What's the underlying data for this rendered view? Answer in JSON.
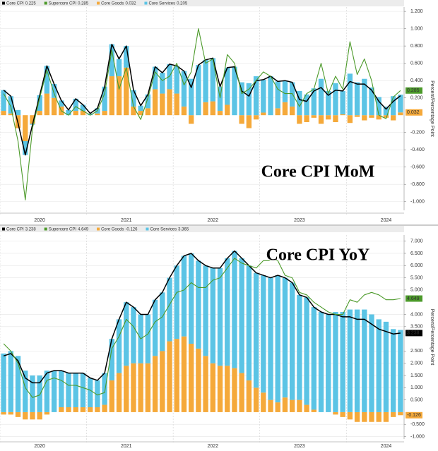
{
  "chart_data": [
    {
      "type": "bar",
      "title": "Core CPI MoM",
      "ylabel": "Percent/Percentage Point",
      "categories": [
        null,
        null,
        null,
        null,
        null,
        "2020",
        null,
        null,
        null,
        null,
        null,
        null,
        null,
        null,
        null,
        null,
        null,
        "2021",
        null,
        null,
        null,
        null,
        null,
        null,
        null,
        null,
        null,
        null,
        null,
        "2022",
        null,
        null,
        null,
        null,
        null,
        null,
        null,
        null,
        null,
        null,
        null,
        "2023",
        null,
        null,
        null,
        null,
        null,
        null,
        null,
        null,
        null,
        null,
        null,
        "2024",
        null,
        null
      ],
      "ylim": [
        -1.1,
        1.25
      ],
      "yticks": [
        {
          "value": 1.2,
          "label": "1.200"
        },
        {
          "value": 1.0,
          "label": "1.000"
        },
        {
          "value": 0.8,
          "label": "0.800"
        },
        {
          "value": 0.6,
          "label": "0.600"
        },
        {
          "value": 0.4,
          "label": "0.400"
        },
        {
          "value": 0.2,
          "label": "0.200"
        },
        {
          "value": -0.2,
          "label": "-0.200"
        },
        {
          "value": -0.4,
          "label": "-0.400"
        },
        {
          "value": -0.6,
          "label": "-0.600"
        },
        {
          "value": -0.8,
          "label": "-0.800"
        },
        {
          "value": -1.0,
          "label": "-1.000"
        }
      ],
      "grid": true,
      "series": [
        {
          "name": "Core CPI",
          "type": "line",
          "color": "#000000",
          "tag": false,
          "values": [
            0.29,
            0.22,
            -0.09,
            -0.46,
            -0.11,
            0.23,
            0.57,
            0.36,
            0.17,
            0.06,
            0.19,
            0.12,
            0.02,
            0.08,
            0.33,
            0.82,
            0.65,
            0.8,
            0.29,
            0.11,
            0.24,
            0.56,
            0.49,
            0.59,
            0.57,
            0.51,
            0.32,
            0.58,
            0.64,
            0.66,
            0.33,
            0.55,
            0.56,
            0.28,
            0.22,
            0.4,
            0.41,
            0.45,
            0.39,
            0.4,
            0.38,
            0.18,
            0.16,
            0.28,
            0.32,
            0.23,
            0.29,
            0.28,
            0.39,
            0.36,
            0.36,
            0.29,
            0.16,
            0.07,
            0.16,
            0.225
          ]
        },
        {
          "name": "Supercore CPI",
          "type": "line",
          "color": "#4c9a2a",
          "tag": true,
          "values": [
            0.25,
            0.1,
            -0.3,
            -0.98,
            -0.15,
            0.2,
            0.52,
            0.25,
            0.05,
            0.0,
            0.1,
            0.05,
            0.0,
            0.05,
            0.25,
            0.75,
            0.3,
            0.55,
            0.1,
            -0.05,
            0.2,
            0.5,
            0.4,
            0.45,
            0.6,
            0.35,
            0.5,
            1.0,
            0.6,
            0.65,
            0.2,
            0.7,
            0.6,
            0.25,
            0.3,
            0.4,
            0.5,
            0.45,
            0.3,
            0.25,
            0.25,
            0.1,
            0.25,
            0.3,
            0.6,
            0.25,
            0.45,
            0.3,
            0.85,
            0.47,
            0.65,
            0.4,
            0.0,
            -0.04,
            0.21,
            0.285
          ]
        },
        {
          "name": "Core Goods",
          "type": "bar",
          "color": "#f5a93a",
          "tag": true,
          "values": [
            0.05,
            0.02,
            -0.15,
            -0.3,
            -0.1,
            0.05,
            0.25,
            0.2,
            0.1,
            0.0,
            0.05,
            0.05,
            0.0,
            0.02,
            0.05,
            0.45,
            0.45,
            0.55,
            0.1,
            0.05,
            0.08,
            0.3,
            0.25,
            0.3,
            0.25,
            0.1,
            -0.1,
            0.0,
            0.15,
            0.16,
            0.05,
            0.12,
            0.0,
            -0.1,
            -0.15,
            -0.05,
            0.03,
            0.0,
            0.08,
            0.15,
            0.1,
            -0.1,
            -0.08,
            -0.03,
            -0.1,
            -0.05,
            -0.08,
            0.01,
            -0.09,
            -0.02,
            -0.06,
            -0.03,
            -0.05,
            -0.03,
            -0.06,
            0.032
          ]
        },
        {
          "name": "Core Services",
          "type": "bar",
          "color": "#5bc4e5",
          "tag": false,
          "values": [
            0.24,
            0.2,
            0.06,
            -0.16,
            -0.01,
            0.18,
            0.32,
            0.16,
            0.07,
            0.06,
            0.14,
            0.07,
            0.02,
            0.06,
            0.28,
            0.37,
            0.2,
            0.25,
            0.19,
            0.06,
            0.16,
            0.26,
            0.24,
            0.29,
            0.32,
            0.41,
            0.42,
            0.58,
            0.49,
            0.5,
            0.28,
            0.43,
            0.56,
            0.38,
            0.37,
            0.45,
            0.38,
            0.45,
            0.31,
            0.25,
            0.28,
            0.28,
            0.24,
            0.31,
            0.42,
            0.28,
            0.37,
            0.27,
            0.48,
            0.38,
            0.42,
            0.32,
            0.21,
            0.1,
            0.22,
            0.205
          ]
        }
      ]
    },
    {
      "type": "bar",
      "title": "Core CPI YoY",
      "ylabel": "Percent/Percentage Point",
      "categories": [
        null,
        null,
        null,
        null,
        null,
        "2020",
        null,
        null,
        null,
        null,
        null,
        null,
        null,
        null,
        null,
        null,
        null,
        "2021",
        null,
        null,
        null,
        null,
        null,
        null,
        null,
        null,
        null,
        null,
        null,
        "2022",
        null,
        null,
        null,
        null,
        null,
        null,
        null,
        null,
        null,
        null,
        null,
        "2023",
        null,
        null,
        null,
        null,
        null,
        null,
        null,
        null,
        null,
        null,
        null,
        "2024",
        null,
        null
      ],
      "ylim": [
        -1.1,
        7.25
      ],
      "yticks": [
        {
          "value": 7.0,
          "label": "7.000"
        },
        {
          "value": 6.5,
          "label": "6.500"
        },
        {
          "value": 6.0,
          "label": "6.000"
        },
        {
          "value": 5.5,
          "label": "5.500"
        },
        {
          "value": 5.0,
          "label": "5.000"
        },
        {
          "value": 4.0,
          "label": "4.000"
        },
        {
          "value": 3.5,
          "label": "3.500"
        },
        {
          "value": 2.5,
          "label": "2.500"
        },
        {
          "value": 2.0,
          "label": "2.000"
        },
        {
          "value": 1.5,
          "label": "1.500"
        },
        {
          "value": 1.0,
          "label": "1.000"
        },
        {
          "value": 0.5,
          "label": "0.500"
        },
        {
          "value": -0.5,
          "label": "-0.500"
        },
        {
          "value": -1.0,
          "label": "-1.000"
        }
      ],
      "grid": true,
      "series": [
        {
          "name": "Core CPI",
          "type": "line",
          "color": "#000000",
          "tag": true,
          "values": [
            2.3,
            2.4,
            2.1,
            1.4,
            1.2,
            1.2,
            1.6,
            1.7,
            1.7,
            1.6,
            1.6,
            1.6,
            1.4,
            1.3,
            1.6,
            3.0,
            3.8,
            4.5,
            4.3,
            4.0,
            4.0,
            4.6,
            4.9,
            5.5,
            6.0,
            6.4,
            6.5,
            6.2,
            6.0,
            5.9,
            5.9,
            6.3,
            6.6,
            6.3,
            6.0,
            5.7,
            5.6,
            5.5,
            5.6,
            5.5,
            5.3,
            4.8,
            4.7,
            4.3,
            4.1,
            4.0,
            4.0,
            3.9,
            3.9,
            3.8,
            3.8,
            3.6,
            3.4,
            3.3,
            3.2,
            3.238
          ]
        },
        {
          "name": "Supercore CPI",
          "type": "line",
          "color": "#4c9a2a",
          "tag": true,
          "values": [
            2.8,
            2.5,
            2.0,
            1.0,
            0.6,
            0.7,
            1.3,
            1.4,
            1.3,
            1.1,
            1.1,
            1.0,
            0.9,
            0.7,
            0.8,
            2.6,
            3.1,
            3.8,
            3.5,
            3.0,
            3.2,
            3.7,
            3.9,
            4.4,
            4.9,
            5.0,
            5.3,
            5.1,
            5.1,
            5.4,
            5.5,
            5.9,
            6.3,
            6.1,
            6.0,
            5.9,
            6.2,
            6.2,
            6.2,
            5.6,
            5.5,
            4.9,
            4.8,
            4.5,
            4.3,
            4.1,
            4.0,
            4.0,
            4.6,
            4.5,
            4.8,
            4.9,
            4.8,
            4.6,
            4.6,
            4.649
          ]
        },
        {
          "name": "Core Goods",
          "type": "bar",
          "color": "#f5a93a",
          "tag": true,
          "values": [
            -0.1,
            -0.1,
            -0.2,
            -0.3,
            -0.3,
            -0.3,
            -0.1,
            0.0,
            0.2,
            0.2,
            0.2,
            0.2,
            0.2,
            0.2,
            0.3,
            1.3,
            1.6,
            1.9,
            2.0,
            2.0,
            2.0,
            2.3,
            2.5,
            2.9,
            3.0,
            3.1,
            2.8,
            2.6,
            2.3,
            2.0,
            1.9,
            1.9,
            1.8,
            1.6,
            1.3,
            1.0,
            0.8,
            0.5,
            0.4,
            0.6,
            0.5,
            0.5,
            0.3,
            0.1,
            0.0,
            0.0,
            -0.1,
            -0.2,
            -0.3,
            -0.4,
            -0.4,
            -0.4,
            -0.4,
            -0.4,
            -0.2,
            -0.126
          ]
        },
        {
          "name": "Core Services",
          "type": "bar",
          "color": "#5bc4e5",
          "tag": false,
          "values": [
            2.4,
            2.5,
            2.3,
            1.7,
            1.5,
            1.5,
            1.7,
            1.7,
            1.5,
            1.4,
            1.4,
            1.4,
            1.2,
            1.1,
            1.3,
            1.7,
            2.2,
            2.6,
            2.3,
            2.0,
            2.0,
            2.3,
            2.4,
            2.6,
            3.0,
            3.3,
            3.7,
            3.6,
            3.7,
            3.9,
            4.0,
            4.4,
            4.8,
            4.7,
            4.7,
            4.7,
            4.8,
            5.0,
            5.2,
            4.9,
            4.8,
            4.3,
            4.4,
            4.2,
            4.1,
            4.0,
            4.1,
            4.1,
            4.2,
            4.2,
            4.2,
            4.0,
            3.8,
            3.7,
            3.4,
            3.365
          ]
        }
      ]
    }
  ]
}
